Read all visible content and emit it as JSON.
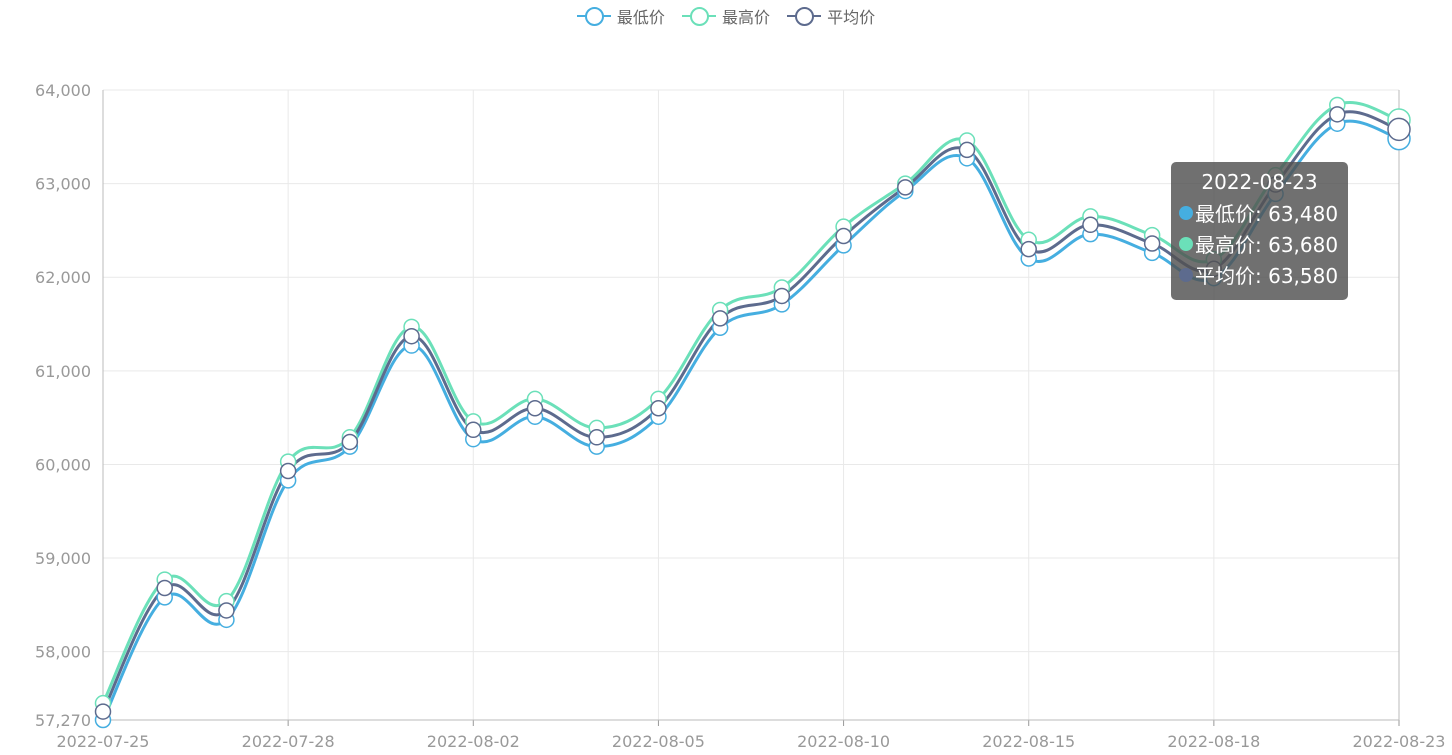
{
  "colors": {
    "low": "#45aee0",
    "high": "#6be0b9",
    "avg": "#5d6b8e",
    "grid": "#e9e9e9",
    "axis": "#999999"
  },
  "legend": [
    {
      "name": "最低价",
      "color": "#45aee0"
    },
    {
      "name": "最高价",
      "color": "#6be0b9"
    },
    {
      "name": "平均价",
      "color": "#5d6b8e"
    }
  ],
  "tooltip": {
    "date": "2022-08-23",
    "rows": [
      {
        "text": "最低价: 63,480",
        "color": "#45aee0"
      },
      {
        "text": "最高价: 63,680",
        "color": "#6be0b9"
      },
      {
        "text": "平均价: 63,580",
        "color": "#5d6b8e"
      }
    ]
  },
  "chart_data": {
    "type": "line",
    "x": [
      "2022-07-25",
      "2022-07-26",
      "2022-07-27",
      "2022-07-28",
      "2022-07-29",
      "2022-08-01",
      "2022-08-02",
      "2022-08-03",
      "2022-08-04",
      "2022-08-05",
      "2022-08-08",
      "2022-08-09",
      "2022-08-10",
      "2022-08-11",
      "2022-08-12",
      "2022-08-15",
      "2022-08-16",
      "2022-08-17",
      "2022-08-18",
      "2022-08-19",
      "2022-08-22",
      "2022-08-23"
    ],
    "x_tick_labels": [
      "2022-07-25",
      "2022-07-28",
      "2022-08-02",
      "2022-08-05",
      "2022-08-10",
      "2022-08-15",
      "2022-08-18",
      "2022-08-23"
    ],
    "series": [
      {
        "name": "最低价",
        "values": [
          57270,
          58580,
          58340,
          59830,
          60190,
          61270,
          60270,
          60510,
          60190,
          60510,
          61460,
          61710,
          62340,
          62920,
          63270,
          62200,
          62460,
          62260,
          61990,
          62890,
          63640,
          63480
        ]
      },
      {
        "name": "最高价",
        "values": [
          57450,
          58770,
          58540,
          60030,
          60290,
          61470,
          60460,
          60700,
          60390,
          60700,
          61650,
          61890,
          62540,
          63000,
          63460,
          62400,
          62650,
          62450,
          62190,
          63090,
          63840,
          63680
        ]
      },
      {
        "name": "平均价",
        "values": [
          57360,
          58680,
          58440,
          59930,
          60240,
          61370,
          60370,
          60600,
          60290,
          60600,
          61560,
          61800,
          62440,
          62960,
          63360,
          62300,
          62560,
          62360,
          62090,
          62990,
          63740,
          63580
        ]
      }
    ],
    "y_ticks": [
      "57,270",
      "58,000",
      "59,000",
      "60,000",
      "61,000",
      "62,000",
      "63,000",
      "64,000"
    ],
    "ylim": [
      57270,
      64000
    ],
    "grid": true,
    "legend_position": "top-center",
    "highlighted_index": 21
  }
}
